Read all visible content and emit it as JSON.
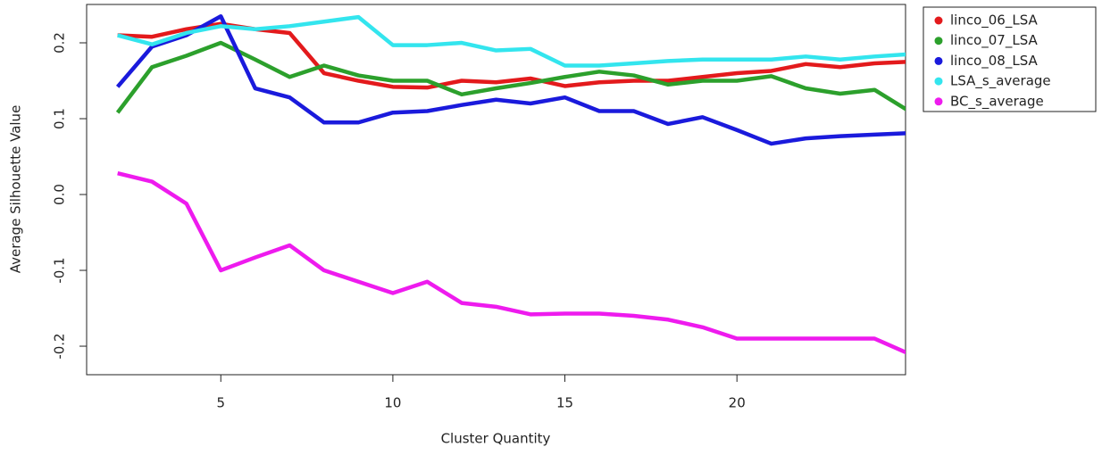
{
  "chart_data": {
    "type": "line",
    "x_label": "Cluster Quantity",
    "y_label": "Average Silhouette Value",
    "x": [
      2,
      3,
      4,
      5,
      6,
      7,
      8,
      9,
      10,
      11,
      12,
      13,
      14,
      15,
      16,
      17,
      18,
      19,
      20,
      21,
      22,
      23,
      24,
      25
    ],
    "xlim": [
      1.1,
      24.9
    ],
    "xticks": [
      5,
      10,
      15,
      20
    ],
    "ylim": [
      -0.2376,
      0.2506
    ],
    "yticks": [
      {
        "value": -0.2,
        "label": "-0.2"
      },
      {
        "value": -0.1,
        "label": "-0.1"
      },
      {
        "value": 0,
        "label": "0.0"
      },
      {
        "value": 0.1,
        "label": "0.1"
      },
      {
        "value": 0.2,
        "label": "0.2"
      }
    ],
    "series": [
      {
        "name": "linco_06_LSA",
        "color": "#e31a1c",
        "values": [
          0.21,
          0.208,
          0.218,
          0.225,
          0.218,
          0.213,
          0.16,
          0.15,
          0.142,
          0.141,
          0.15,
          0.148,
          0.153,
          0.143,
          0.148,
          0.15,
          0.15,
          0.155,
          0.16,
          0.163,
          0.172,
          0.168,
          0.173,
          0.175
        ]
      },
      {
        "name": "linco_07_LSA",
        "color": "#2ca02c",
        "values": [
          0.108,
          0.168,
          0.183,
          0.2,
          0.178,
          0.155,
          0.17,
          0.157,
          0.15,
          0.15,
          0.132,
          0.14,
          0.147,
          0.155,
          0.162,
          0.157,
          0.145,
          0.15,
          0.15,
          0.156,
          0.14,
          0.133,
          0.138,
          0.11
        ]
      },
      {
        "name": "linco_08_LSA",
        "color": "#1a1adc",
        "values": [
          0.142,
          0.195,
          0.21,
          0.235,
          0.14,
          0.128,
          0.095,
          0.095,
          0.108,
          0.11,
          0.118,
          0.125,
          0.12,
          0.128,
          0.11,
          0.11,
          0.093,
          0.102,
          0.085,
          0.067,
          0.074,
          0.077,
          0.079,
          0.081
        ]
      },
      {
        "name": "LSA_s_average",
        "color": "#33e5ee",
        "values": [
          0.21,
          0.198,
          0.213,
          0.222,
          0.218,
          0.222,
          0.228,
          0.234,
          0.197,
          0.197,
          0.2,
          0.19,
          0.192,
          0.17,
          0.17,
          0.173,
          0.176,
          0.178,
          0.178,
          0.178,
          0.182,
          0.178,
          0.182,
          0.185
        ]
      },
      {
        "name": "BC_s_average",
        "color": "#ee1bee",
        "values": [
          0.028,
          0.017,
          -0.012,
          -0.1,
          -0.083,
          -0.067,
          -0.1,
          -0.115,
          -0.13,
          -0.115,
          -0.143,
          -0.148,
          -0.158,
          -0.157,
          -0.157,
          -0.16,
          -0.165,
          -0.175,
          -0.19,
          -0.19,
          -0.19,
          -0.19,
          -0.19,
          -0.21
        ]
      }
    ]
  }
}
